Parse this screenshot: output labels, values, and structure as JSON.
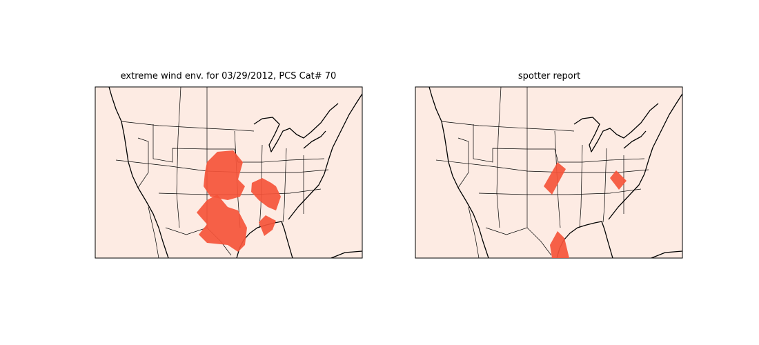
{
  "panels": [
    {
      "title": "extreme wind env. for 03/29/2012, PCS Cat# 70"
    },
    {
      "title": "spotter report"
    }
  ]
}
